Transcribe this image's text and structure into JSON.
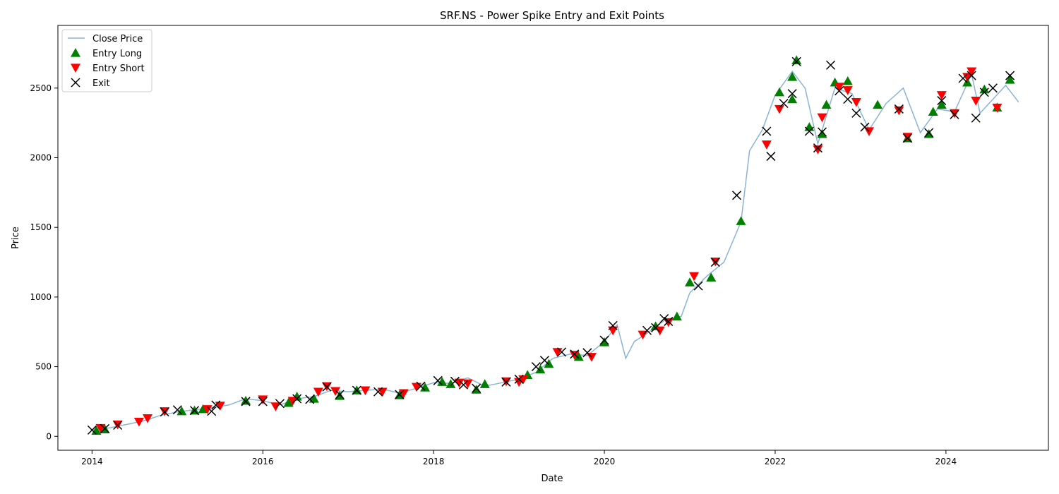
{
  "chart_data": {
    "type": "line",
    "title": "SRF.NS - Power Spike Entry and Exit Points",
    "xlabel": "Date",
    "ylabel": "Price",
    "xlim": [
      2013.6,
      2025.2
    ],
    "ylim": [
      -100,
      2950
    ],
    "x_ticks": [
      2014,
      2016,
      2018,
      2020,
      2022,
      2024
    ],
    "x_tick_labels": [
      "2014",
      "2016",
      "2018",
      "2020",
      "2022",
      "2024"
    ],
    "y_ticks": [
      0,
      500,
      1000,
      1500,
      2000,
      2500
    ],
    "y_tick_labels": [
      "0",
      "500",
      "1000",
      "1500",
      "2000",
      "2500"
    ],
    "grid": false,
    "legend_position": "upper left",
    "colors": {
      "close_price": "#8ab4d6",
      "entry_long": "#008000",
      "entry_short": "#ff0000",
      "exit": "#000000"
    },
    "series": [
      {
        "name": "Close Price",
        "kind": "line",
        "points": [
          [
            2014.0,
            45
          ],
          [
            2014.2,
            60
          ],
          [
            2014.4,
            85
          ],
          [
            2014.6,
            110
          ],
          [
            2014.8,
            150
          ],
          [
            2015.0,
            175
          ],
          [
            2015.2,
            190
          ],
          [
            2015.4,
            205
          ],
          [
            2015.6,
            225
          ],
          [
            2015.8,
            270
          ],
          [
            2016.0,
            255
          ],
          [
            2016.2,
            225
          ],
          [
            2016.4,
            270
          ],
          [
            2016.6,
            285
          ],
          [
            2016.8,
            330
          ],
          [
            2017.0,
            320
          ],
          [
            2017.2,
            330
          ],
          [
            2017.4,
            340
          ],
          [
            2017.6,
            310
          ],
          [
            2017.8,
            345
          ],
          [
            2018.0,
            385
          ],
          [
            2018.2,
            380
          ],
          [
            2018.4,
            420
          ],
          [
            2018.6,
            360
          ],
          [
            2018.8,
            385
          ],
          [
            2019.0,
            410
          ],
          [
            2019.2,
            460
          ],
          [
            2019.4,
            560
          ],
          [
            2019.6,
            590
          ],
          [
            2019.8,
            580
          ],
          [
            2020.0,
            680
          ],
          [
            2020.15,
            800
          ],
          [
            2020.25,
            560
          ],
          [
            2020.35,
            680
          ],
          [
            2020.5,
            740
          ],
          [
            2020.7,
            830
          ],
          [
            2020.9,
            860
          ],
          [
            2021.0,
            1030
          ],
          [
            2021.2,
            1150
          ],
          [
            2021.4,
            1250
          ],
          [
            2021.6,
            1540
          ],
          [
            2021.7,
            2050
          ],
          [
            2021.85,
            2200
          ],
          [
            2022.0,
            2450
          ],
          [
            2022.2,
            2620
          ],
          [
            2022.35,
            2500
          ],
          [
            2022.5,
            2100
          ],
          [
            2022.7,
            2500
          ],
          [
            2022.9,
            2460
          ],
          [
            2023.1,
            2200
          ],
          [
            2023.3,
            2390
          ],
          [
            2023.5,
            2500
          ],
          [
            2023.7,
            2180
          ],
          [
            2023.9,
            2350
          ],
          [
            2024.1,
            2330
          ],
          [
            2024.3,
            2600
          ],
          [
            2024.4,
            2320
          ],
          [
            2024.55,
            2420
          ],
          [
            2024.7,
            2520
          ],
          [
            2024.85,
            2400
          ]
        ]
      },
      {
        "name": "Entry Long",
        "kind": "scatter",
        "points": [
          [
            2014.05,
            40
          ],
          [
            2014.15,
            50
          ],
          [
            2015.05,
            180
          ],
          [
            2015.2,
            185
          ],
          [
            2015.3,
            195
          ],
          [
            2015.8,
            255
          ],
          [
            2016.3,
            240
          ],
          [
            2016.4,
            285
          ],
          [
            2016.6,
            270
          ],
          [
            2016.9,
            290
          ],
          [
            2017.1,
            330
          ],
          [
            2017.6,
            295
          ],
          [
            2017.9,
            350
          ],
          [
            2018.1,
            390
          ],
          [
            2018.2,
            375
          ],
          [
            2018.5,
            335
          ],
          [
            2018.6,
            375
          ],
          [
            2019.1,
            440
          ],
          [
            2019.25,
            480
          ],
          [
            2019.35,
            520
          ],
          [
            2019.7,
            570
          ],
          [
            2020.0,
            675
          ],
          [
            2020.6,
            790
          ],
          [
            2020.85,
            860
          ],
          [
            2021.0,
            1105
          ],
          [
            2021.25,
            1140
          ],
          [
            2021.6,
            1545
          ],
          [
            2022.05,
            2470
          ],
          [
            2022.2,
            2420
          ],
          [
            2022.2,
            2580
          ],
          [
            2022.25,
            2700
          ],
          [
            2022.4,
            2220
          ],
          [
            2022.55,
            2170
          ],
          [
            2022.6,
            2380
          ],
          [
            2022.7,
            2540
          ],
          [
            2022.85,
            2550
          ],
          [
            2023.2,
            2380
          ],
          [
            2023.55,
            2140
          ],
          [
            2023.8,
            2170
          ],
          [
            2023.85,
            2330
          ],
          [
            2023.95,
            2380
          ],
          [
            2024.25,
            2540
          ],
          [
            2024.45,
            2490
          ],
          [
            2024.6,
            2360
          ],
          [
            2024.75,
            2560
          ]
        ]
      },
      {
        "name": "Entry Short",
        "kind": "scatter",
        "points": [
          [
            2014.1,
            60
          ],
          [
            2014.3,
            85
          ],
          [
            2014.55,
            105
          ],
          [
            2014.65,
            130
          ],
          [
            2014.85,
            180
          ],
          [
            2015.35,
            195
          ],
          [
            2015.5,
            220
          ],
          [
            2016.0,
            265
          ],
          [
            2016.15,
            215
          ],
          [
            2016.35,
            255
          ],
          [
            2016.65,
            320
          ],
          [
            2016.75,
            360
          ],
          [
            2016.85,
            325
          ],
          [
            2017.2,
            330
          ],
          [
            2017.4,
            320
          ],
          [
            2017.65,
            310
          ],
          [
            2017.8,
            355
          ],
          [
            2018.3,
            385
          ],
          [
            2018.4,
            380
          ],
          [
            2018.85,
            395
          ],
          [
            2019.0,
            390
          ],
          [
            2019.05,
            410
          ],
          [
            2019.45,
            605
          ],
          [
            2019.65,
            585
          ],
          [
            2019.85,
            570
          ],
          [
            2020.1,
            760
          ],
          [
            2020.45,
            730
          ],
          [
            2020.65,
            760
          ],
          [
            2020.75,
            820
          ],
          [
            2021.05,
            1150
          ],
          [
            2021.3,
            1255
          ],
          [
            2021.9,
            2095
          ],
          [
            2022.05,
            2350
          ],
          [
            2022.5,
            2060
          ],
          [
            2022.55,
            2290
          ],
          [
            2022.75,
            2510
          ],
          [
            2022.85,
            2485
          ],
          [
            2022.95,
            2400
          ],
          [
            2023.1,
            2190
          ],
          [
            2023.45,
            2340
          ],
          [
            2023.55,
            2150
          ],
          [
            2023.95,
            2450
          ],
          [
            2024.1,
            2320
          ],
          [
            2024.25,
            2580
          ],
          [
            2024.3,
            2620
          ],
          [
            2024.35,
            2410
          ],
          [
            2024.6,
            2360
          ]
        ]
      },
      {
        "name": "Exit",
        "kind": "scatter",
        "points": [
          [
            2014.0,
            45
          ],
          [
            2014.15,
            55
          ],
          [
            2014.3,
            80
          ],
          [
            2014.85,
            175
          ],
          [
            2015.0,
            190
          ],
          [
            2015.2,
            185
          ],
          [
            2015.4,
            180
          ],
          [
            2015.45,
            225
          ],
          [
            2015.8,
            250
          ],
          [
            2016.0,
            250
          ],
          [
            2016.2,
            235
          ],
          [
            2016.4,
            270
          ],
          [
            2016.55,
            265
          ],
          [
            2016.75,
            355
          ],
          [
            2016.9,
            300
          ],
          [
            2017.1,
            330
          ],
          [
            2017.35,
            320
          ],
          [
            2017.6,
            300
          ],
          [
            2017.85,
            360
          ],
          [
            2018.05,
            400
          ],
          [
            2018.25,
            395
          ],
          [
            2018.35,
            370
          ],
          [
            2018.5,
            345
          ],
          [
            2018.85,
            390
          ],
          [
            2019.0,
            410
          ],
          [
            2019.2,
            500
          ],
          [
            2019.3,
            545
          ],
          [
            2019.5,
            605
          ],
          [
            2019.65,
            590
          ],
          [
            2019.8,
            600
          ],
          [
            2020.0,
            690
          ],
          [
            2020.1,
            795
          ],
          [
            2020.5,
            760
          ],
          [
            2020.6,
            780
          ],
          [
            2020.7,
            845
          ],
          [
            2020.75,
            825
          ],
          [
            2021.1,
            1080
          ],
          [
            2021.3,
            1250
          ],
          [
            2021.55,
            1730
          ],
          [
            2021.9,
            2190
          ],
          [
            2021.95,
            2010
          ],
          [
            2022.1,
            2390
          ],
          [
            2022.2,
            2460
          ],
          [
            2022.25,
            2690
          ],
          [
            2022.4,
            2190
          ],
          [
            2022.5,
            2070
          ],
          [
            2022.55,
            2185
          ],
          [
            2022.65,
            2665
          ],
          [
            2022.75,
            2480
          ],
          [
            2022.85,
            2420
          ],
          [
            2022.95,
            2320
          ],
          [
            2023.05,
            2220
          ],
          [
            2023.45,
            2350
          ],
          [
            2023.55,
            2140
          ],
          [
            2023.8,
            2180
          ],
          [
            2023.95,
            2410
          ],
          [
            2024.1,
            2310
          ],
          [
            2024.2,
            2570
          ],
          [
            2024.3,
            2590
          ],
          [
            2024.35,
            2285
          ],
          [
            2024.45,
            2470
          ],
          [
            2024.55,
            2500
          ],
          [
            2024.75,
            2590
          ]
        ]
      }
    ]
  }
}
